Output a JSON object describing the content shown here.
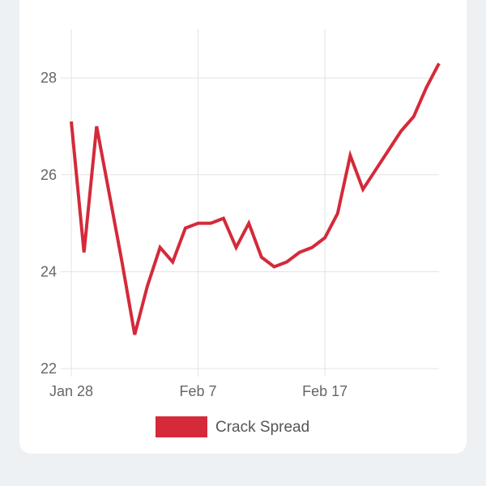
{
  "chart_data": {
    "type": "line",
    "x": [
      "Jan 28",
      "Jan 29",
      "Jan 30",
      "Jan 31",
      "Feb 1",
      "Feb 2",
      "Feb 3",
      "Feb 4",
      "Feb 5",
      "Feb 6",
      "Feb 7",
      "Feb 8",
      "Feb 9",
      "Feb 10",
      "Feb 11",
      "Feb 12",
      "Feb 13",
      "Feb 14",
      "Feb 15",
      "Feb 16",
      "Feb 17",
      "Feb 18",
      "Feb 19",
      "Feb 20",
      "Feb 21",
      "Feb 22",
      "Feb 23",
      "Feb 24",
      "Feb 25",
      "Feb 26"
    ],
    "series": [
      {
        "name": "Crack Spread",
        "color": "#d42a3a",
        "values": [
          27.1,
          24.4,
          27.0,
          25.6,
          24.2,
          22.7,
          23.7,
          24.5,
          24.2,
          24.9,
          25.0,
          25.0,
          25.1,
          24.5,
          25.0,
          24.3,
          24.1,
          24.2,
          24.4,
          24.5,
          24.7,
          25.2,
          26.4,
          25.7,
          26.1,
          26.5,
          26.9,
          27.2,
          27.8,
          28.3
        ]
      }
    ],
    "xticks": [
      "Jan 28",
      "Feb 7",
      "Feb 17"
    ],
    "yticks": [
      "22",
      "24",
      "26",
      "28"
    ],
    "ylim": [
      22,
      29
    ],
    "grid": true,
    "legend_position": "bottom"
  }
}
